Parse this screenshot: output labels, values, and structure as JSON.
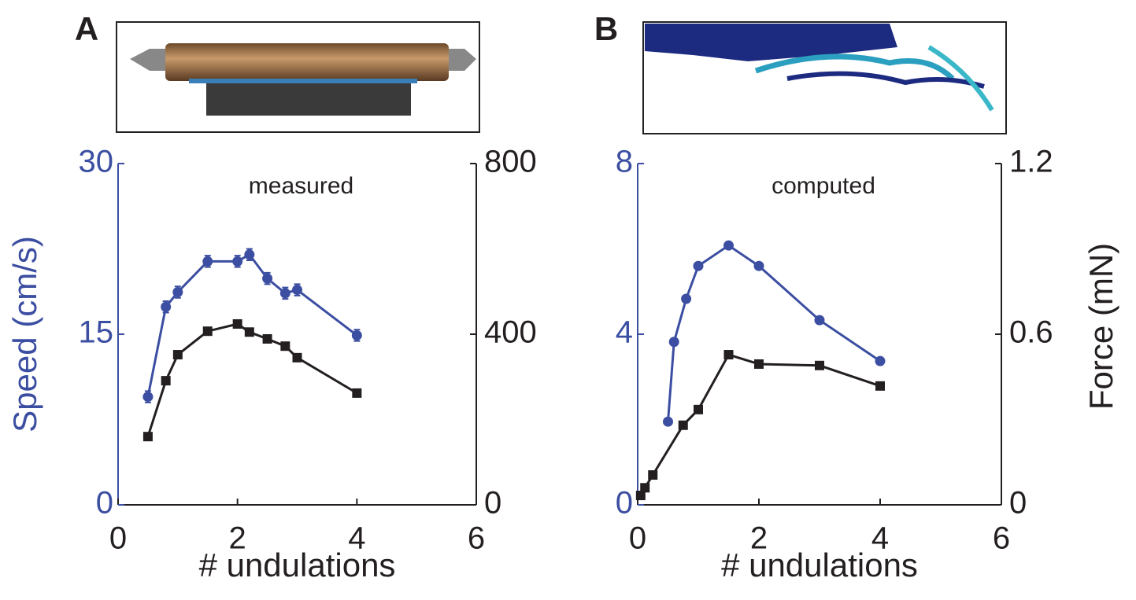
{
  "chart_data": [
    {
      "type": "line",
      "panel": "A",
      "annotation": "measured",
      "xlabel": "# undulations",
      "ylabel": "Speed (cm/s)",
      "xlim": [
        0,
        6
      ],
      "xticks": [
        0,
        2,
        4,
        6
      ],
      "ylim": [
        0,
        30
      ],
      "yticks": [
        0,
        15,
        30
      ],
      "y2lim": [
        0,
        800
      ],
      "y2ticks": [
        0,
        400,
        800
      ],
      "series": [
        {
          "color": "#3b4ea1",
          "marker": "circle",
          "x": [
            0.5,
            0.8,
            1.0,
            1.5,
            2.0,
            2.2,
            2.5,
            2.8,
            3.0,
            4.0
          ],
          "values": [
            9.5,
            17.4,
            18.7,
            21.4,
            21.4,
            22.0,
            19.9,
            18.6,
            18.9,
            14.9
          ],
          "errors": [
            0.5,
            0.5,
            0.5,
            0.5,
            0.5,
            0.5,
            0.5,
            0.5,
            0.5,
            0.5
          ]
        },
        {
          "color": "#231f20",
          "marker": "square",
          "axis": "y2",
          "x": [
            0.5,
            0.8,
            1.0,
            1.5,
            2.0,
            2.2,
            2.5,
            2.8,
            3.0,
            4.0
          ],
          "values": [
            160,
            291,
            352,
            407,
            424,
            405,
            389,
            372,
            345,
            262
          ]
        }
      ]
    },
    {
      "type": "line",
      "panel": "B",
      "annotation": "computed",
      "xlabel": "# undulations",
      "y2label": "Force (mN)",
      "xlim": [
        0,
        6
      ],
      "xticks": [
        0,
        2,
        4,
        6
      ],
      "ylim": [
        0,
        8
      ],
      "yticks": [
        0,
        4,
        8
      ],
      "y2lim": [
        0,
        1.2
      ],
      "y2ticks": [
        0,
        0.6,
        1.2
      ],
      "series": [
        {
          "color": "#3b4ea1",
          "marker": "circle",
          "x": [
            0.5,
            0.6,
            0.8,
            1.0,
            1.5,
            2.0,
            3.0,
            4.0
          ],
          "values": [
            1.95,
            3.82,
            4.83,
            5.6,
            6.08,
            5.6,
            4.33,
            3.37
          ]
        },
        {
          "color": "#231f20",
          "marker": "square",
          "axis": "y2",
          "x": [
            0.05,
            0.12,
            0.25,
            0.75,
            1.0,
            1.5,
            2.0,
            3.0,
            4.0
          ],
          "values": [
            0.033,
            0.06,
            0.105,
            0.28,
            0.335,
            0.528,
            0.495,
            0.49,
            0.418
          ]
        }
      ]
    }
  ]
}
